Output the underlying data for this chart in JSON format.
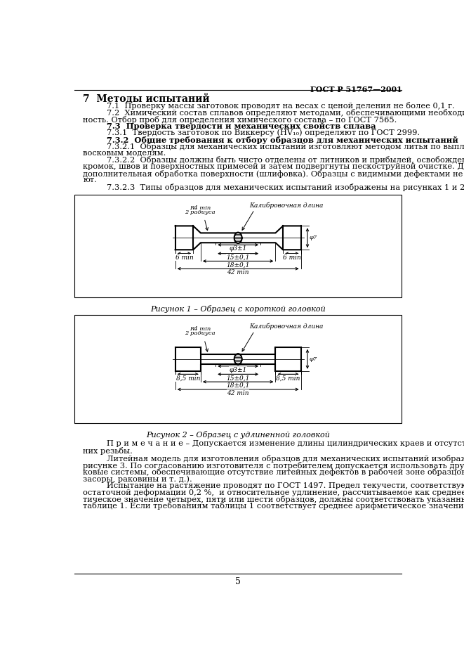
{
  "title_right": "ГОСТ Р 51767—2001",
  "section_title": "7  Методы испытаний",
  "page_number": "5",
  "background_color": "#ffffff",
  "fig1_caption": "Рисунок 1 – Образец с короткой головкой",
  "fig2_caption": "Рисунок 2 – Образец с удлиненной головкой",
  "note_line1": "П р и м е ч а н и е – Допускается изменение длины цилиндрических краев и отсутствие/наличие на",
  "note_line2": "них резьбы.",
  "fig1_label_R": "R4 min",
  "fig1_label_R2": "2 радиуса",
  "fig1_label_calib": "Калибровочная длина",
  "fig1_label_phi": "φ3±1",
  "fig1_label_15": "15±0,1",
  "fig1_label_18": "18±0,1",
  "fig1_label_42": "42 min",
  "fig1_label_6L": "6 min",
  "fig1_label_6R": "6 min",
  "fig1_label_phi7": "φ7",
  "fig2_label_phi": "φ3±1",
  "fig2_label_15": "15±0,1",
  "fig2_label_18": "18±0,1",
  "fig2_label_42": "42 min",
  "fig2_label_85L": "8,5 min",
  "fig2_label_85R": "8,5 min",
  "fig2_label_phi7": "φ7"
}
